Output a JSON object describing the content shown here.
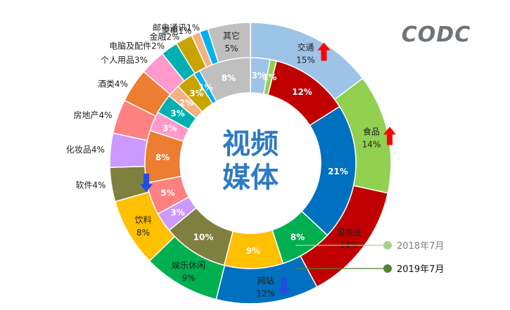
{
  "logo": "CODC",
  "center_label": [
    "视频",
    "媒体"
  ],
  "chart_data": {
    "type": "donut",
    "rings": [
      {
        "name": "2019年7月",
        "ring": "outer",
        "slices": [
          {
            "label": "交通",
            "value": 15,
            "color": "#9dc3e6",
            "trend": "up"
          },
          {
            "label": "食品",
            "value": 14,
            "color": "#92d050",
            "trend": "up"
          },
          {
            "label": "服务业",
            "value": 14,
            "color": "#c00000"
          },
          {
            "label": "网站",
            "value": 12,
            "color": "#0070c0",
            "trend": "down"
          },
          {
            "label": "娱乐休闲",
            "value": 9,
            "color": "#00b050"
          },
          {
            "label": "饮料",
            "value": 8,
            "color": "#ffc000"
          },
          {
            "label": "软件",
            "value": 4,
            "color": "#7f7f3f",
            "trend": "down"
          },
          {
            "label": "化妆品",
            "value": 4,
            "color": "#cc99ff"
          },
          {
            "label": "房地产",
            "value": 4,
            "color": "#ff8080"
          },
          {
            "label": "酒类",
            "value": 4,
            "color": "#ed7d31"
          },
          {
            "label": "个人用品",
            "value": 3,
            "color": "#ff99cc"
          },
          {
            "label": "电脑及配件",
            "value": 2,
            "color": "#00b0b0"
          },
          {
            "label": "金融",
            "value": 2,
            "color": "#c9a300"
          },
          {
            "label": "家电",
            "value": 1,
            "color": "#f4b183"
          },
          {
            "label": "邮电通讯",
            "value": 1,
            "color": "#00b0f0"
          },
          {
            "label": "其它",
            "value": 5,
            "color": "#bfbfbf"
          }
        ]
      },
      {
        "name": "2018年7月",
        "ring": "inner",
        "slices": [
          {
            "value": 3,
            "color": "#9dc3e6"
          },
          {
            "value": 1,
            "color": "#92d050"
          },
          {
            "value": 12,
            "color": "#c00000"
          },
          {
            "value": 21,
            "color": "#0070c0"
          },
          {
            "value": 8,
            "color": "#00b050"
          },
          {
            "value": 9,
            "color": "#ffc000"
          },
          {
            "value": 10,
            "color": "#7f7f3f"
          },
          {
            "value": 3,
            "color": "#cc99ff"
          },
          {
            "value": 5,
            "color": "#ff8080"
          },
          {
            "value": 8,
            "color": "#ed7d31"
          },
          {
            "value": 3,
            "color": "#ff99cc"
          },
          {
            "value": 3,
            "color": "#00b0b0"
          },
          {
            "value": 2,
            "color": "#f4b183"
          },
          {
            "value": 3,
            "color": "#c9a300"
          },
          {
            "value": 1,
            "color": "#00b0f0"
          },
          {
            "value": 8,
            "color": "#bfbfbf"
          }
        ]
      }
    ],
    "legend": [
      {
        "label": "2018年7月",
        "color": "#a9d18e"
      },
      {
        "label": "2019年7月",
        "color": "#548235"
      }
    ],
    "trend_colors": {
      "up": "#ff0000",
      "down": "#1f4fe0"
    }
  }
}
